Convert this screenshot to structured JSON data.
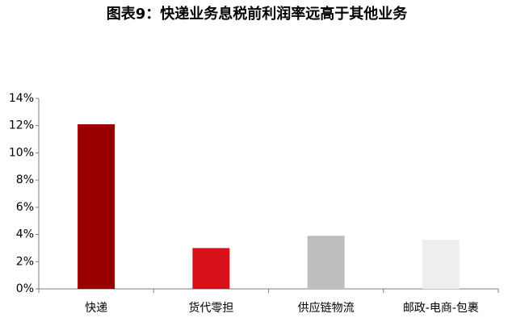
{
  "chart_data": {
    "type": "bar",
    "title": "图表9：快递业务息税前利润率远高于其他业务",
    "categories": [
      "快递",
      "货代零担",
      "供应链物流",
      "邮政-电商-包裹"
    ],
    "values": [
      12.1,
      3.0,
      3.9,
      3.6
    ],
    "colors": [
      "#9b0000",
      "#d7111a",
      "#c0bdbe",
      "#f0eded"
    ],
    "ylim": [
      0,
      14
    ],
    "yticks": [
      {
        "value": 0,
        "label": "0%"
      },
      {
        "value": 2,
        "label": "2%"
      },
      {
        "value": 4,
        "label": "4%"
      },
      {
        "value": 6,
        "label": "6%"
      },
      {
        "value": 8,
        "label": "8%"
      },
      {
        "value": 10,
        "label": "10%"
      },
      {
        "value": 12,
        "label": "12%"
      },
      {
        "value": 14,
        "label": "14%"
      }
    ]
  }
}
